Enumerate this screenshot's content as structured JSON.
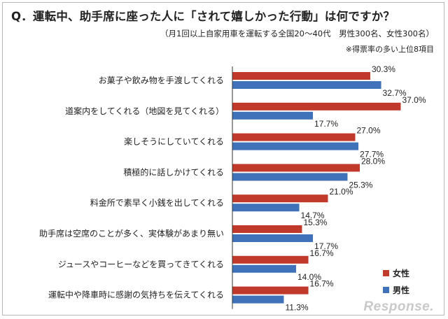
{
  "title": "Q．運転中、助手席に座った人に「されて嬉しかった行動」は何ですか？",
  "subtitle": "（月1回以上自家用車を運転する全国20～40代　男性300名、女性300名）",
  "note": "※得票率の多い上位8項目",
  "logo": "Response.",
  "colors": {
    "female": "#c0392b",
    "male": "#3f72b8",
    "axis": "#333333"
  },
  "chart_data": {
    "type": "bar",
    "orientation": "horizontal",
    "categories": [
      "お菓子や飲み物を手渡してくれる",
      "道案内をしてくれる（地図を見てくれる）",
      "楽しそうにしていてくれる",
      "積極的に話しかけてくれる",
      "料金所で素早く小銭を出してくれる",
      "助手席は空席のことが多く、実体験があまり無い",
      "ジュースやコーヒーなどを買ってきてくれる",
      "運転中や降車時に感謝の気持ちを伝えてくれる"
    ],
    "series": [
      {
        "name": "女性",
        "values": [
          30.3,
          37.0,
          27.0,
          28.0,
          21.0,
          15.3,
          16.7,
          16.7
        ]
      },
      {
        "name": "男性",
        "values": [
          32.7,
          17.7,
          27.7,
          25.3,
          14.7,
          17.7,
          14.0,
          11.3
        ]
      }
    ],
    "value_labels": [
      [
        "30.3%",
        "37.0%",
        "27.0%",
        "28.0%",
        "21.0%",
        "15.3%",
        "16.7%",
        "16.7%"
      ],
      [
        "32.7%",
        "17.7%",
        "27.7%",
        "25.3%",
        "14.7%",
        "17.7%",
        "14.0%",
        "11.3%"
      ]
    ],
    "xlim": [
      0,
      40
    ],
    "grid": false,
    "legend_position": "bottom-right"
  }
}
